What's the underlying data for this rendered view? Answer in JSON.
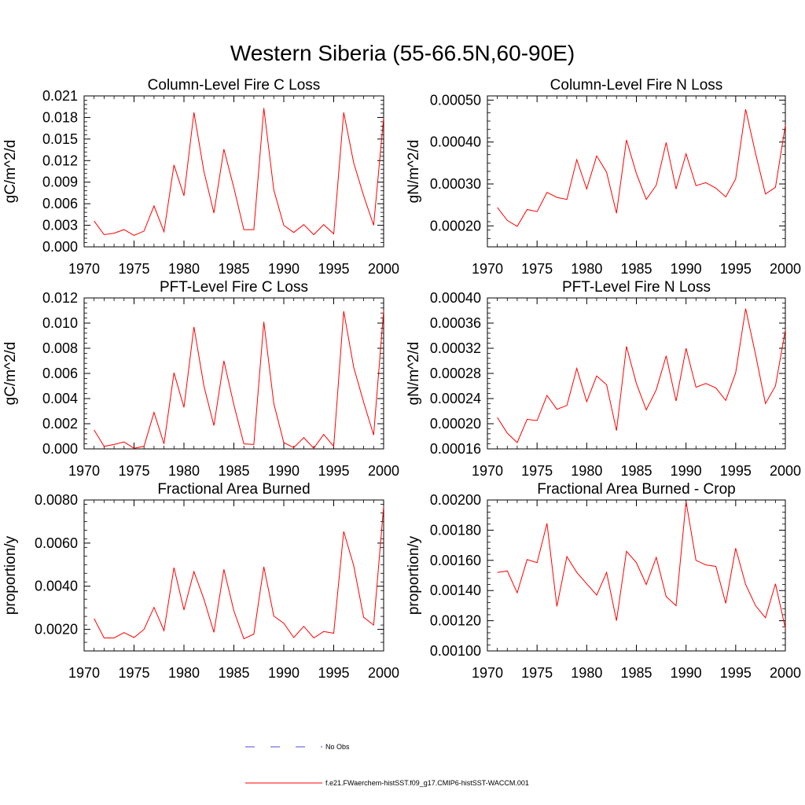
{
  "figure": {
    "title": "Western Siberia (55-66.5N,60-90E)"
  },
  "legend": {
    "items": [
      {
        "label": "No Obs",
        "color": "#4b4bd6",
        "dash": "dashed"
      },
      {
        "label": "f.e21.FWaerchem-histSST.f09_g17.CMIP6-histSST-WACCM.001",
        "color": "#ff0000",
        "dash": "solid"
      }
    ]
  },
  "chart_data": [
    {
      "type": "line",
      "title": "Column-Level Fire C Loss",
      "ylabel": "gC/m^2/d",
      "xlim": [
        1970,
        2000
      ],
      "ylim": [
        0,
        0.021
      ],
      "x_ticks": [
        "1970",
        "1975",
        "1980",
        "1985",
        "1990",
        "1995",
        "2000"
      ],
      "y_ticks": [
        "0.000",
        "0.003",
        "0.006",
        "0.009",
        "0.012",
        "0.015",
        "0.018",
        "0.021"
      ],
      "y_tick_values": [
        0,
        0.003,
        0.006,
        0.009,
        0.012,
        0.015,
        0.018,
        0.021
      ],
      "x": [
        1971,
        1972,
        1973,
        1974,
        1975,
        1976,
        1977,
        1978,
        1979,
        1980,
        1981,
        1982,
        1983,
        1984,
        1985,
        1986,
        1987,
        1988,
        1989,
        1990,
        1991,
        1992,
        1993,
        1994,
        1995,
        1996,
        1997,
        1998,
        1999,
        2000
      ],
      "series": [
        {
          "color": "#ff0000",
          "values": [
            0.0036,
            0.0017,
            0.0019,
            0.0024,
            0.0016,
            0.0022,
            0.0057,
            0.0021,
            0.0114,
            0.0071,
            0.0187,
            0.0105,
            0.0047,
            0.0136,
            0.0082,
            0.0024,
            0.0024,
            0.0193,
            0.0079,
            0.003,
            0.002,
            0.0031,
            0.0017,
            0.0031,
            0.0018,
            0.0187,
            0.0117,
            0.0071,
            0.003,
            0.018
          ]
        }
      ]
    },
    {
      "type": "line",
      "title": "Column-Level Fire N Loss",
      "ylabel": "gN/m^2/d",
      "xlim": [
        1970,
        2000
      ],
      "ylim": [
        0.00015,
        0.00051
      ],
      "x_ticks": [
        "1970",
        "1975",
        "1980",
        "1985",
        "1990",
        "1995",
        "2000"
      ],
      "y_ticks": [
        "0.00020",
        "0.00030",
        "0.00040",
        "0.00050"
      ],
      "y_tick_values": [
        0.0002,
        0.0003,
        0.0004,
        0.0005
      ],
      "x": [
        1971,
        1972,
        1973,
        1974,
        1975,
        1976,
        1977,
        1978,
        1979,
        1980,
        1981,
        1982,
        1983,
        1984,
        1985,
        1986,
        1987,
        1988,
        1989,
        1990,
        1991,
        1992,
        1993,
        1994,
        1995,
        1996,
        1997,
        1998,
        1999,
        2000
      ],
      "series": [
        {
          "color": "#ff0000",
          "values": [
            0.000244,
            0.000213,
            0.000199,
            0.000239,
            0.000234,
            0.00028,
            0.000268,
            0.000263,
            0.000358,
            0.000288,
            0.000367,
            0.000328,
            0.00023,
            0.000405,
            0.000325,
            0.000263,
            0.000297,
            0.000399,
            0.000288,
            0.000372,
            0.000296,
            0.000303,
            0.00029,
            0.000269,
            0.000312,
            0.000478,
            0.000373,
            0.000276,
            0.000292,
            0.00044
          ]
        }
      ]
    },
    {
      "type": "line",
      "title": "PFT-Level Fire C Loss",
      "ylabel": "gC/m^2/d",
      "xlim": [
        1970,
        2000
      ],
      "ylim": [
        0,
        0.012
      ],
      "x_ticks": [
        "1970",
        "1975",
        "1980",
        "1985",
        "1990",
        "1995",
        "2000"
      ],
      "y_ticks": [
        "0.000",
        "0.002",
        "0.004",
        "0.006",
        "0.008",
        "0.010",
        "0.012"
      ],
      "y_tick_values": [
        0,
        0.002,
        0.004,
        0.006,
        0.008,
        0.01,
        0.012
      ],
      "x": [
        1971,
        1972,
        1973,
        1974,
        1975,
        1976,
        1977,
        1978,
        1979,
        1980,
        1981,
        1982,
        1983,
        1984,
        1985,
        1986,
        1987,
        1988,
        1989,
        1990,
        1991,
        1992,
        1993,
        1994,
        1995,
        1996,
        1997,
        1998,
        1999,
        2000
      ],
      "series": [
        {
          "color": "#ff0000",
          "values": [
            0.0015,
            0.0002,
            0.00035,
            0.00055,
            5e-05,
            0.0002,
            0.0029,
            0.0004,
            0.00605,
            0.0033,
            0.0097,
            0.005,
            0.00185,
            0.007,
            0.0035,
            0.0004,
            0.00035,
            0.0101,
            0.0036,
            0.0005,
            0.0001,
            0.0009,
            5e-05,
            0.00115,
            0.0002,
            0.01095,
            0.0065,
            0.0037,
            0.0011,
            0.011
          ]
        }
      ]
    },
    {
      "type": "line",
      "title": "PFT-Level Fire N Loss",
      "ylabel": "gN/m^2/d",
      "xlim": [
        1970,
        2000
      ],
      "ylim": [
        0.00016,
        0.0004
      ],
      "x_ticks": [
        "1970",
        "1975",
        "1980",
        "1985",
        "1990",
        "1995",
        "2000"
      ],
      "y_ticks": [
        "0.00016",
        "0.00020",
        "0.00024",
        "0.00028",
        "0.00032",
        "0.00036",
        "0.00040"
      ],
      "y_tick_values": [
        0.00016,
        0.0002,
        0.00024,
        0.00028,
        0.00032,
        0.00036,
        0.0004
      ],
      "x": [
        1971,
        1972,
        1973,
        1974,
        1975,
        1976,
        1977,
        1978,
        1979,
        1980,
        1981,
        1982,
        1983,
        1984,
        1985,
        1986,
        1987,
        1988,
        1989,
        1990,
        1991,
        1992,
        1993,
        1994,
        1995,
        1996,
        1997,
        1998,
        1999,
        2000
      ],
      "series": [
        {
          "color": "#ff0000",
          "values": [
            0.00021,
            0.000185,
            0.00017,
            0.000207,
            0.000205,
            0.000245,
            0.000223,
            0.000229,
            0.000288,
            0.000235,
            0.000276,
            0.000262,
            0.000189,
            0.000323,
            0.000264,
            0.000222,
            0.000254,
            0.000308,
            0.000236,
            0.00032,
            0.000258,
            0.000264,
            0.000257,
            0.000237,
            0.000281,
            0.000383,
            0.00031,
            0.000232,
            0.00026,
            0.000349
          ]
        }
      ]
    },
    {
      "type": "line",
      "title": "Fractional Area Burned",
      "ylabel": "proportion/y",
      "xlim": [
        1970,
        2000
      ],
      "ylim": [
        0.001,
        0.008
      ],
      "x_ticks": [
        "1970",
        "1975",
        "1980",
        "1985",
        "1990",
        "1995",
        "2000"
      ],
      "y_ticks": [
        "0.0020",
        "0.0040",
        "0.0060",
        "0.0080"
      ],
      "y_tick_values": [
        0.002,
        0.004,
        0.006,
        0.008
      ],
      "x": [
        1971,
        1972,
        1973,
        1974,
        1975,
        1976,
        1977,
        1978,
        1979,
        1980,
        1981,
        1982,
        1983,
        1984,
        1985,
        1986,
        1987,
        1988,
        1989,
        1990,
        1991,
        1992,
        1993,
        1994,
        1995,
        1996,
        1997,
        1998,
        1999,
        2000
      ],
      "series": [
        {
          "color": "#ff0000",
          "values": [
            0.0025,
            0.0016,
            0.0016,
            0.00185,
            0.00162,
            0.002,
            0.00302,
            0.00194,
            0.00486,
            0.0029,
            0.00468,
            0.0034,
            0.00186,
            0.00478,
            0.00286,
            0.00156,
            0.00178,
            0.0049,
            0.00262,
            0.00228,
            0.00162,
            0.00214,
            0.0016,
            0.0019,
            0.00182,
            0.00654,
            0.00496,
            0.00256,
            0.0022,
            0.0077
          ]
        }
      ]
    },
    {
      "type": "line",
      "title": "Fractional Area Burned - Crop",
      "ylabel": "proportion/y",
      "xlim": [
        1970,
        2000
      ],
      "ylim": [
        0.001,
        0.002
      ],
      "x_ticks": [
        "1970",
        "1975",
        "1980",
        "1985",
        "1990",
        "1995",
        "2000"
      ],
      "y_ticks": [
        "0.00100",
        "0.00120",
        "0.00140",
        "0.00160",
        "0.00180",
        "0.00200"
      ],
      "y_tick_values": [
        0.001,
        0.0012,
        0.0014,
        0.0016,
        0.0018,
        0.002
      ],
      "x": [
        1971,
        1972,
        1973,
        1974,
        1975,
        1976,
        1977,
        1978,
        1979,
        1980,
        1981,
        1982,
        1983,
        1984,
        1985,
        1986,
        1987,
        1988,
        1989,
        1990,
        1991,
        1992,
        1993,
        1994,
        1995,
        1996,
        1997,
        1998,
        1999,
        2000
      ],
      "series": [
        {
          "color": "#ff0000",
          "values": [
            0.00152,
            0.00153,
            0.001385,
            0.001605,
            0.001585,
            0.001845,
            0.001295,
            0.001625,
            0.00152,
            0.001445,
            0.00137,
            0.00152,
            0.0012,
            0.00166,
            0.001585,
            0.00144,
            0.00162,
            0.00136,
            0.0013,
            0.00199,
            0.0016,
            0.00157,
            0.00156,
            0.001315,
            0.00168,
            0.00144,
            0.0013,
            0.00122,
            0.001445,
            0.00115
          ]
        }
      ]
    }
  ]
}
